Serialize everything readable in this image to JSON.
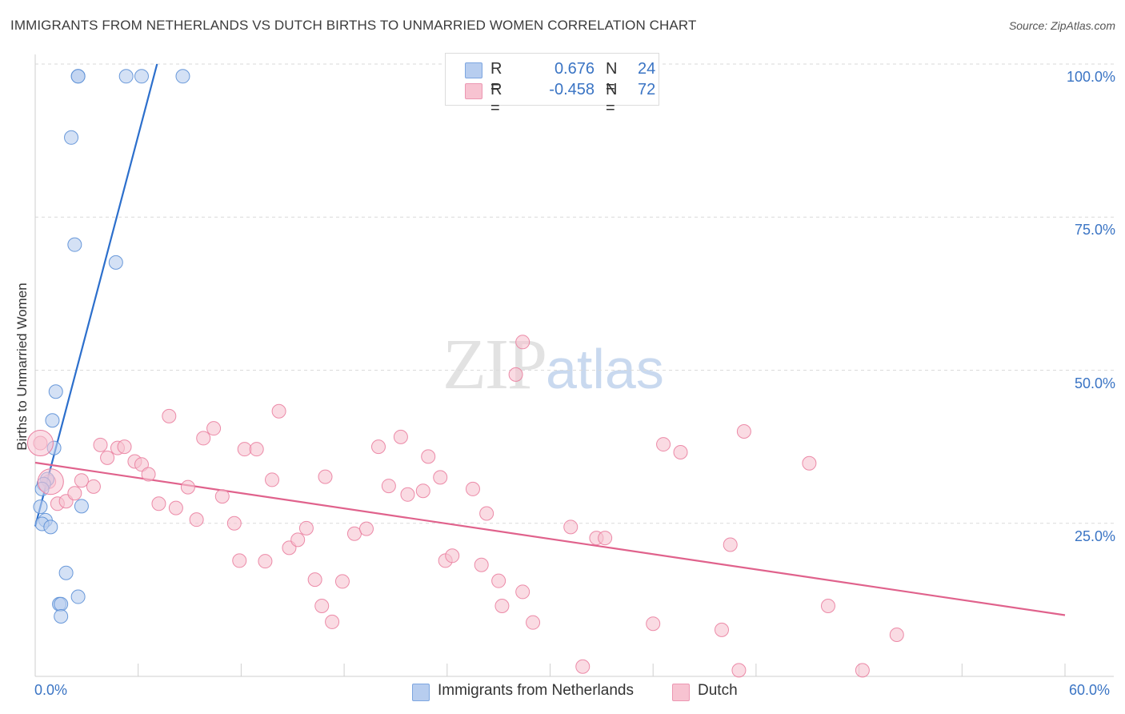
{
  "header": {
    "title": "IMMIGRANTS FROM NETHERLANDS VS DUTCH BIRTHS TO UNMARRIED WOMEN CORRELATION CHART",
    "source": "Source: ZipAtlas.com"
  },
  "watermark": {
    "zip": "ZIP",
    "atlas": "atlas"
  },
  "legend": {
    "rows": [
      {
        "r_label": "R =",
        "r_value": "0.676",
        "n_label": "N =",
        "n_value": "24",
        "color": "#b7cdef"
      },
      {
        "r_label": "R =",
        "r_value": "-0.458",
        "n_label": "N =",
        "n_value": "72",
        "color": "#f7c3d1"
      }
    ]
  },
  "chart_data": {
    "type": "scatter",
    "title": "IMMIGRANTS FROM NETHERLANDS VS DUTCH BIRTHS TO UNMARRIED WOMEN CORRELATION CHART",
    "xlabel": "",
    "ylabel": "Births to Unmarried Women",
    "xlim": [
      0,
      60
    ],
    "ylim": [
      0,
      100
    ],
    "x_tick_labels": [
      "0.0%",
      "60.0%"
    ],
    "y_ticks": [
      25,
      50,
      75,
      100
    ],
    "y_tick_labels": [
      "25.0%",
      "50.0%",
      "75.0%",
      "100.0%"
    ],
    "grid": true,
    "series": [
      {
        "name": "Immigrants from Netherlands",
        "color": "#5b8fd6",
        "fill": "#b7cdef",
        "line_color": "#2c6fcc",
        "trend": [
          [
            0.0,
            24.5
          ],
          [
            7.1,
            100.0
          ]
        ],
        "points": [
          [
            2.5,
            98
          ],
          [
            2.5,
            98
          ],
          [
            5.3,
            98
          ],
          [
            6.2,
            98
          ],
          [
            8.6,
            98
          ],
          [
            2.1,
            88
          ],
          [
            2.3,
            70.5
          ],
          [
            4.7,
            67.6
          ],
          [
            1.2,
            46.5
          ],
          [
            1.0,
            41.8
          ],
          [
            1.1,
            37.3
          ],
          [
            0.7,
            32.2
          ],
          [
            0.5,
            31.4
          ],
          [
            0.4,
            30.6
          ],
          [
            0.3,
            27.7
          ],
          [
            2.7,
            27.8
          ],
          [
            0.6,
            25.5
          ],
          [
            0.4,
            24.9
          ],
          [
            0.9,
            24.4
          ],
          [
            1.8,
            16.9
          ],
          [
            2.5,
            13.0
          ],
          [
            1.4,
            11.8
          ],
          [
            1.5,
            11.8
          ],
          [
            1.5,
            9.8
          ]
        ]
      },
      {
        "name": "Dutch",
        "color": "#ea7fa0",
        "fill": "#f7c3d1",
        "line_color": "#e0628c",
        "trend": [
          [
            0.0,
            34.9
          ],
          [
            60.0,
            10.0
          ]
        ],
        "points": [
          [
            0.3,
            38.1
          ],
          [
            0.8,
            31.8
          ],
          [
            1.3,
            28.2
          ],
          [
            1.8,
            28.6
          ],
          [
            2.3,
            29.9
          ],
          [
            2.7,
            32.0
          ],
          [
            3.4,
            31.0
          ],
          [
            3.8,
            37.8
          ],
          [
            4.2,
            35.7
          ],
          [
            4.8,
            37.3
          ],
          [
            5.2,
            37.5
          ],
          [
            5.8,
            35.1
          ],
          [
            6.2,
            34.6
          ],
          [
            6.6,
            33.0
          ],
          [
            7.2,
            28.2
          ],
          [
            7.8,
            42.5
          ],
          [
            8.2,
            27.5
          ],
          [
            8.9,
            30.9
          ],
          [
            9.4,
            25.6
          ],
          [
            9.8,
            38.9
          ],
          [
            10.4,
            40.5
          ],
          [
            10.9,
            29.4
          ],
          [
            11.6,
            25.0
          ],
          [
            11.9,
            18.9
          ],
          [
            12.2,
            37.1
          ],
          [
            12.9,
            37.1
          ],
          [
            13.4,
            18.8
          ],
          [
            13.8,
            32.1
          ],
          [
            14.2,
            43.3
          ],
          [
            14.8,
            21.0
          ],
          [
            15.3,
            22.3
          ],
          [
            15.8,
            24.2
          ],
          [
            16.3,
            15.8
          ],
          [
            16.7,
            11.5
          ],
          [
            16.9,
            32.6
          ],
          [
            17.3,
            8.9
          ],
          [
            17.9,
            15.5
          ],
          [
            18.6,
            23.3
          ],
          [
            19.3,
            24.1
          ],
          [
            20.0,
            37.5
          ],
          [
            20.6,
            31.1
          ],
          [
            21.3,
            39.1
          ],
          [
            21.7,
            29.7
          ],
          [
            22.6,
            30.3
          ],
          [
            22.9,
            35.9
          ],
          [
            23.6,
            32.5
          ],
          [
            23.9,
            18.9
          ],
          [
            24.3,
            19.7
          ],
          [
            25.5,
            30.6
          ],
          [
            26.0,
            18.2
          ],
          [
            26.3,
            26.6
          ],
          [
            27.0,
            15.6
          ],
          [
            27.2,
            11.5
          ],
          [
            28.0,
            49.3
          ],
          [
            28.4,
            54.6
          ],
          [
            28.4,
            13.8
          ],
          [
            29.0,
            8.8
          ],
          [
            31.2,
            24.4
          ],
          [
            31.9,
            1.6
          ],
          [
            32.7,
            22.6
          ],
          [
            33.2,
            22.6
          ],
          [
            36.0,
            8.6
          ],
          [
            36.6,
            37.9
          ],
          [
            37.6,
            36.6
          ],
          [
            40.0,
            7.6
          ],
          [
            40.5,
            21.5
          ],
          [
            41.0,
            1.0
          ],
          [
            41.3,
            40.0
          ],
          [
            45.1,
            34.8
          ],
          [
            46.2,
            11.5
          ],
          [
            48.2,
            1.0
          ],
          [
            50.2,
            6.8
          ]
        ]
      }
    ],
    "legend_placement": "top-center"
  },
  "bottom_legend": [
    {
      "label": "Immigrants from Netherlands",
      "color": "#b7cdef"
    },
    {
      "label": "Dutch",
      "color": "#f7c3d1"
    }
  ]
}
